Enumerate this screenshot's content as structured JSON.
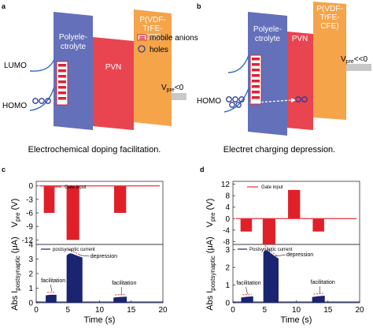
{
  "colors": {
    "polyelectrolyte": "#6470ba",
    "pvn": "#e84550",
    "pvdf": "#f5a44a",
    "mobile_anions": "#d92535",
    "holes": "#2e3d98",
    "gate_line": "#e8323d",
    "bar_red": "#e02028",
    "bar_navy": "#1b2470",
    "vpre_bar": "#c8c8c8",
    "lumo_line": "#2f6fc0"
  },
  "panels": {
    "a": {
      "letter": "a",
      "band1": "Polyele-\nctrolyte",
      "band2": "PVN",
      "band3": "P(VDF-\nTrFE-\nCFE)",
      "lumo": "LUMO",
      "homo": "HOMO",
      "legend_anions": "mobile anions",
      "legend_holes": "holes",
      "vpre_main": "V",
      "vpre_sub": "pre",
      "vpre_rel": "<0",
      "caption": "Electrochemical doping facilitation."
    },
    "b": {
      "letter": "b",
      "band1": "Polyele-\nctrolyte",
      "band2": "PVN",
      "band3": "P(VDF-\nTrFE-\nCFE)",
      "homo": "HOMO",
      "vpre_main": "V",
      "vpre_sub": "pre",
      "vpre_rel": "<<0",
      "caption": "Electret charging depression."
    },
    "c": {
      "letter": "c"
    },
    "d": {
      "letter": "d"
    }
  },
  "chart_data": [
    {
      "id": "c",
      "type": "bar",
      "top": {
        "ylabel_main": "V",
        "ylabel_sub": "pre",
        "ylabel_unit": "(V)",
        "legend": "Gate input",
        "yticks": [
          0,
          -3,
          -6,
          -9,
          -12
        ],
        "ylim": [
          -13,
          1
        ],
        "bars": [
          {
            "x0": 1.2,
            "x1": 2.9,
            "value": -6
          },
          {
            "x0": 4.8,
            "x1": 6.8,
            "value": -12
          },
          {
            "x0": 12.3,
            "x1": 14.2,
            "value": -6
          }
        ]
      },
      "bottom": {
        "ylabel_main": "Abs I",
        "ylabel_sub": "postsynaptic",
        "ylabel_unit": "(μA)",
        "legend": "postsynaptic current",
        "yticks": [
          0,
          1,
          2,
          3,
          4
        ],
        "ylim": [
          0,
          4
        ],
        "pulses": [
          {
            "x0": 1.5,
            "x1": 3.2,
            "peak": 0.55,
            "end": 0.55
          },
          {
            "x0": 4.8,
            "x1": 7.3,
            "peak": 3.5,
            "end": 3.1
          },
          {
            "x0": 12.2,
            "x1": 14.3,
            "peak": 0.38,
            "end": 0.42
          }
        ],
        "annotations": [
          "facilitation",
          "depression",
          "facilitation"
        ]
      },
      "xlabel": "Time (s)",
      "xticks": [
        0,
        5,
        10,
        15,
        20
      ],
      "xlim": [
        0,
        20
      ]
    },
    {
      "id": "d",
      "type": "bar",
      "top": {
        "ylabel_main": "V",
        "ylabel_sub": "pre",
        "ylabel_unit": "(V)",
        "legend": "Gate input",
        "yticks": [
          12,
          8,
          4,
          0,
          -4,
          -8
        ],
        "ylim": [
          -9,
          13
        ],
        "bars": [
          {
            "x0": 1.2,
            "x1": 3.0,
            "value": -4.5
          },
          {
            "x0": 4.7,
            "x1": 6.7,
            "value": -9
          },
          {
            "x0": 8.7,
            "x1": 10.6,
            "value": 10
          },
          {
            "x0": 12.6,
            "x1": 14.4,
            "value": -4.5
          }
        ]
      },
      "bottom": {
        "ylabel_main": "Abs I",
        "ylabel_sub": "postsynaptic",
        "ylabel_unit": "(μA)",
        "legend": "Postsynaptic current",
        "yticks": [
          0,
          1,
          2,
          3
        ],
        "ylim": [
          0,
          3.3
        ],
        "pulses": [
          {
            "x0": 1.3,
            "x1": 3.2,
            "peak": 0.32,
            "end": 0.36
          },
          {
            "x0": 4.8,
            "x1": 7.2,
            "peak": 3.1,
            "end": 2.5
          },
          {
            "x0": 12.5,
            "x1": 14.5,
            "peak": 0.35,
            "end": 0.4
          }
        ],
        "annotations": [
          "facilitation",
          "depression",
          "facilitation"
        ]
      },
      "xlabel": "Time (s)",
      "xticks": [
        0,
        5,
        10,
        15,
        20
      ],
      "xlim": [
        0,
        20
      ]
    }
  ]
}
